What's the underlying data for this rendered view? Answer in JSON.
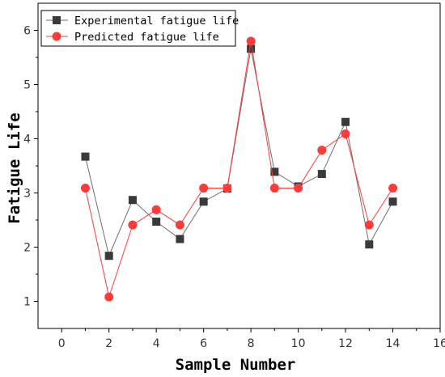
{
  "chart_data": {
    "type": "line",
    "title": "",
    "xlabel": "Sample Number",
    "ylabel": "Fatigue Life",
    "xlim": [
      -1,
      16
    ],
    "ylim": [
      0.5,
      6.5
    ],
    "xticks": [
      0,
      2,
      4,
      6,
      8,
      10,
      12,
      14,
      16
    ],
    "yticks": [
      1,
      2,
      3,
      4,
      5,
      6
    ],
    "x": [
      1,
      2,
      3,
      4,
      5,
      6,
      7,
      8,
      9,
      10,
      11,
      12,
      13,
      14
    ],
    "series": [
      {
        "name": "Experimental fatigue life",
        "marker": "square",
        "line_color": "#6e6e6e",
        "marker_color": "#3a3a3a",
        "values": [
          3.67,
          1.84,
          2.87,
          2.47,
          2.15,
          2.84,
          3.08,
          5.66,
          3.39,
          3.12,
          3.35,
          4.31,
          2.05,
          2.84
        ]
      },
      {
        "name": "Predicted fatigue life",
        "marker": "circle",
        "line_color": "#ff3a3a",
        "marker_color": "#ff3a3a",
        "values": [
          3.09,
          1.08,
          2.41,
          2.69,
          2.41,
          3.09,
          3.09,
          5.8,
          3.09,
          3.09,
          3.79,
          4.09,
          2.41,
          3.09
        ]
      }
    ],
    "grid": false,
    "legend_position": "top-left"
  }
}
